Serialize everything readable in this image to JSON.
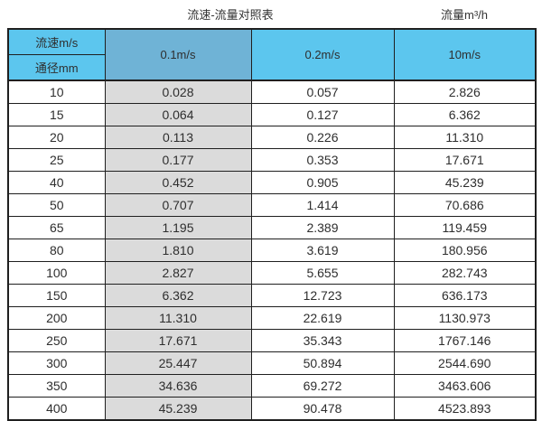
{
  "chart_data": {
    "type": "table",
    "title": "流速-流量对照表",
    "unit_label": "流量m³/h",
    "corner_header": {
      "top": "流速m/s",
      "bottom": "通径mm"
    },
    "velocity_columns": [
      "0.1m/s",
      "0.2m/s",
      "10m/s"
    ],
    "rows": [
      {
        "diameter_mm": "10",
        "values": [
          "0.028",
          "0.057",
          "2.826"
        ]
      },
      {
        "diameter_mm": "15",
        "values": [
          "0.064",
          "0.127",
          "6.362"
        ]
      },
      {
        "diameter_mm": "20",
        "values": [
          "0.113",
          "0.226",
          "11.310"
        ]
      },
      {
        "diameter_mm": "25",
        "values": [
          "0.177",
          "0.353",
          "17.671"
        ]
      },
      {
        "diameter_mm": "40",
        "values": [
          "0.452",
          "0.905",
          "45.239"
        ]
      },
      {
        "diameter_mm": "50",
        "values": [
          "0.707",
          "1.414",
          "70.686"
        ]
      },
      {
        "diameter_mm": "65",
        "values": [
          "1.195",
          "2.389",
          "119.459"
        ]
      },
      {
        "diameter_mm": "80",
        "values": [
          "1.810",
          "3.619",
          "180.956"
        ]
      },
      {
        "diameter_mm": "100",
        "values": [
          "2.827",
          "5.655",
          "282.743"
        ]
      },
      {
        "diameter_mm": "150",
        "values": [
          "6.362",
          "12.723",
          "636.173"
        ]
      },
      {
        "diameter_mm": "200",
        "values": [
          "11.310",
          "22.619",
          "1130.973"
        ]
      },
      {
        "diameter_mm": "250",
        "values": [
          "17.671",
          "35.343",
          "1767.146"
        ]
      },
      {
        "diameter_mm": "300",
        "values": [
          "25.447",
          "50.894",
          "2544.690"
        ]
      },
      {
        "diameter_mm": "350",
        "values": [
          "34.636",
          "69.272",
          "3463.606"
        ]
      },
      {
        "diameter_mm": "400",
        "values": [
          "45.239",
          "90.478",
          "4523.893"
        ]
      }
    ]
  },
  "colors": {
    "header_blue": "#5cc6ee",
    "header_dark_blue": "#6fb3d6",
    "gray_col": "#dbdbdb",
    "border_color": "#1f1f1f",
    "text_color": "#2e2e2e"
  }
}
